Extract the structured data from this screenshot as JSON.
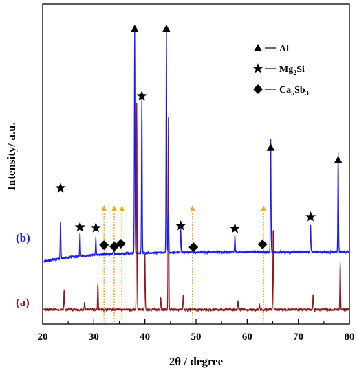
{
  "chart_data": {
    "type": "line",
    "xlabel": "2θ / degree",
    "ylabel": "Intensity/ a.u.",
    "xlim": [
      20,
      80
    ],
    "x_ticks": [
      "20",
      "30",
      "40",
      "50",
      "60",
      "70",
      "80"
    ],
    "grid": false,
    "legend_position": "top-right",
    "legend": [
      {
        "symbol": "triangle",
        "label": "Al",
        "sub_label": ""
      },
      {
        "symbol": "star",
        "label": "Mg",
        "sub": "2",
        "tail": "Si"
      },
      {
        "symbol": "diamond",
        "label": "Ca",
        "sub": "5",
        "mid": "Sb",
        "sub2": "3"
      }
    ],
    "series": [
      {
        "name": "(a)",
        "color": "#8b1a1a",
        "peaks": [
          [
            24.2,
            28
          ],
          [
            28.2,
            10
          ],
          [
            30.8,
            38
          ],
          [
            38.4,
            300
          ],
          [
            40.0,
            80
          ],
          [
            43.1,
            18
          ],
          [
            44.6,
            280
          ],
          [
            47.5,
            22
          ],
          [
            58.2,
            14
          ],
          [
            62.4,
            8
          ],
          [
            65.1,
            120
          ],
          [
            72.9,
            22
          ],
          [
            78.2,
            70
          ]
        ]
      },
      {
        "name": "(b)",
        "color": "#1a1aff",
        "peaks": [
          [
            23.5,
            55
          ],
          [
            27.3,
            35
          ],
          [
            30.4,
            25
          ],
          [
            33.9,
            8
          ],
          [
            38.0,
            330
          ],
          [
            39.4,
            230
          ],
          [
            44.2,
            330
          ],
          [
            44.6,
            60
          ],
          [
            47.0,
            35
          ],
          [
            57.6,
            25
          ],
          [
            64.6,
            165
          ],
          [
            72.4,
            40
          ],
          [
            77.8,
            145
          ]
        ]
      }
    ],
    "markers": {
      "triangle_blue": [
        38.0,
        44.2,
        64.6,
        77.8
      ],
      "star": [
        23.5,
        27.3,
        30.4,
        39.4,
        47.0,
        57.6,
        72.4
      ],
      "diamond": [
        32.0,
        34.0,
        35.3,
        49.5,
        63.0
      ],
      "triangle_orange": [
        32.0,
        34.0,
        35.5,
        49.3,
        63.2
      ]
    },
    "colors": {
      "series_a": "#8b1a1a",
      "series_b": "#1a1aff",
      "orange": "#f5a623",
      "marker": "#000000"
    }
  }
}
